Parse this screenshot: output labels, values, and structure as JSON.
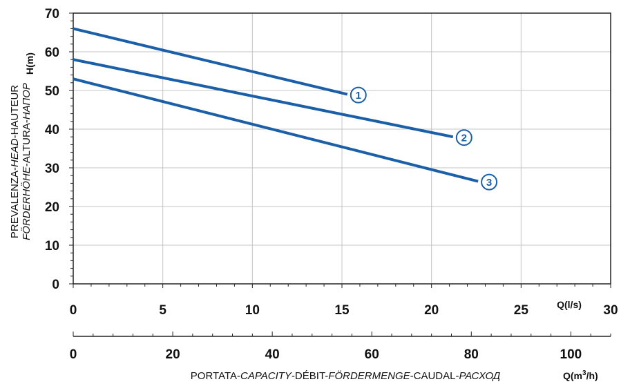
{
  "chart_data": {
    "type": "line",
    "title": "",
    "ylabel_unit": "H(m)",
    "ylabel_line1": [
      "PREVALENZA-",
      "HEAD",
      "-HAUTEUR"
    ],
    "ylabel_line2": [
      "FÖRDERHÖHE",
      "-ALTURA-",
      "НАПОР"
    ],
    "xlabel_parts": [
      "PORTATA-",
      "CAPACITY",
      "-DÉBIT-",
      "FÖRDERMENGE",
      "-CAUDAL-",
      "РАСХОД"
    ],
    "x_unit_ls": "Q(l/s)",
    "x_unit_m3h_prefix": "Q(m",
    "x_unit_m3h_sup": "3",
    "x_unit_m3h_suffix": "/h)",
    "ylim": [
      0,
      70
    ],
    "xlim_ls": [
      0,
      30
    ],
    "xlim_m3h": [
      0,
      108
    ],
    "y_ticks": [
      "0",
      "10",
      "20",
      "30",
      "40",
      "50",
      "60",
      "70"
    ],
    "x_ticks_ls": [
      "0",
      "5",
      "10",
      "15",
      "20",
      "25",
      "30"
    ],
    "x_ticks_m3h": [
      "0",
      "20",
      "40",
      "60",
      "80",
      "100"
    ],
    "grid": true,
    "line_color": "#1a5fa8",
    "series": [
      {
        "name": "1",
        "x": [
          0,
          15.3
        ],
        "y": [
          66,
          49
        ]
      },
      {
        "name": "2",
        "x": [
          0,
          21.2
        ],
        "y": [
          58,
          38
        ]
      },
      {
        "name": "3",
        "x": [
          0,
          22.6
        ],
        "y": [
          53,
          26.5
        ]
      }
    ]
  }
}
